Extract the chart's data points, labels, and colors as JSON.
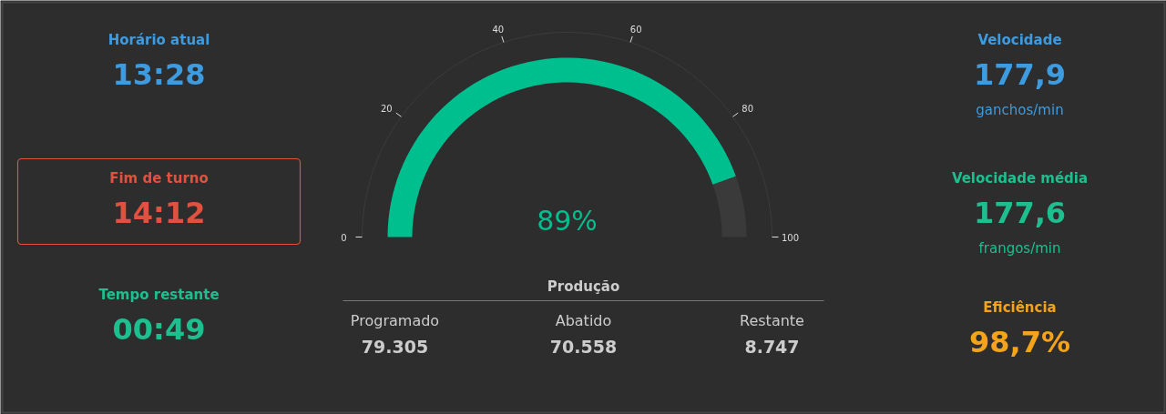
{
  "chart_data": [
    {
      "type": "other",
      "title": "Horário atual",
      "annotations": [
        "13:28"
      ],
      "colors": [
        "#3d9be0"
      ]
    },
    {
      "type": "other",
      "title": "Fim de turno",
      "annotations": [
        "14:12"
      ],
      "colors": [
        "#e0513f",
        "#e0513f"
      ]
    },
    {
      "type": "other",
      "title": "Tempo restante",
      "annotations": [
        "00:49"
      ],
      "colors": [
        "#1dbf8f"
      ]
    },
    {
      "type": "donut",
      "categories": [
        null,
        null
      ],
      "values": [
        89,
        11
      ],
      "colors": [
        "#00bf8f",
        "#3a3a3a"
      ],
      "value_labels": [
        "89%",
        null
      ],
      "annotations": [
        "0",
        "20",
        "40",
        "60",
        "80",
        "100"
      ]
    },
    {
      "type": "other",
      "title": "Produção",
      "categories": [
        "Programado",
        "Abatido",
        "Restante"
      ],
      "value_labels": [
        "79.305",
        "70.558",
        "8.747"
      ]
    },
    {
      "type": "other",
      "title": "Velocidade",
      "annotations": [
        "177,9",
        "ganchos/min"
      ],
      "colors": [
        "#3d9be0"
      ]
    },
    {
      "type": "other",
      "title": "Velocidade média",
      "annotations": [
        "177,6",
        "frangos/min"
      ],
      "colors": [
        "#1dbf8f"
      ]
    },
    {
      "type": "other",
      "title": "Eficiência",
      "annotations": [
        "98,7%"
      ],
      "colors": [
        "#f5a31a"
      ]
    }
  ]
}
